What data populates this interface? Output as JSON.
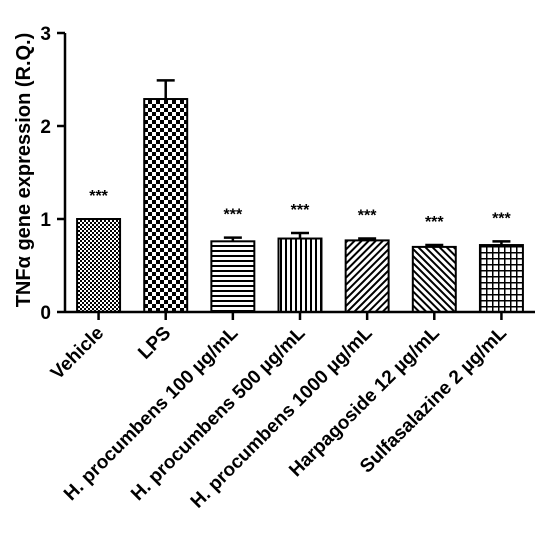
{
  "chart_data": {
    "type": "bar",
    "title": "",
    "xlabel": "",
    "ylabel": "TNFα gene expression (R.Q.)",
    "ylim": [
      0,
      3
    ],
    "yticks": [
      "0",
      "1",
      "2",
      "3"
    ],
    "grid": false,
    "categories": [
      "Vehicle",
      "LPS",
      "H. procumbens 100 µg/mL",
      "H. procumbens 500 µg/mL",
      "H. procumbens 1000 µg/mL",
      "Harpagoside 12 µg/mL",
      "Sulfasalazine 2 µg/mL"
    ],
    "values": [
      1.0,
      2.29,
      0.76,
      0.79,
      0.77,
      0.7,
      0.72
    ],
    "errors": [
      0.0,
      0.2,
      0.04,
      0.06,
      0.02,
      0.02,
      0.04
    ],
    "annotations": [
      "***",
      "",
      "***",
      "***",
      "***",
      "***",
      "***"
    ],
    "patterns": [
      "fine-check",
      "checker",
      "horizontal",
      "vertical",
      "diagonal-down",
      "diagonal-up",
      "grid"
    ]
  }
}
